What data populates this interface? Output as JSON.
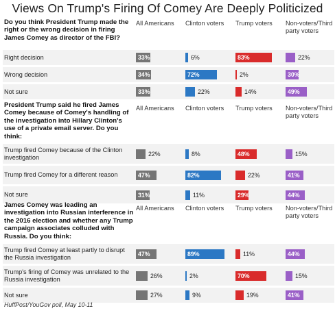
{
  "title": "Views On Trump's Firing Of Comey Are Deeply Politicized",
  "footer": "HuffPost/YouGov poll, May 10-11",
  "colors": {
    "All Americans": "#757575",
    "Clinton voters": "#2c78c4",
    "Trump voters": "#d92b2b",
    "Non-voters/Third party voters": "#9a5fc7",
    "row_background": "#f2f2f2"
  },
  "chart_data": {
    "type": "bar",
    "columns": [
      "All Americans",
      "Clinton voters",
      "Trump voters",
      "Non-voters/Third party voters"
    ],
    "column_labels": [
      "All Americans",
      "Clinton voters",
      "Trump voters",
      "Non-voters/Third\nparty voters"
    ],
    "value_suffix": "%",
    "xlim": [
      0,
      100
    ],
    "questions": [
      {
        "text": "Do you think President Trump made the right or the wrong decision in firing James Comey as director of the FBI?",
        "rows": [
          {
            "label": "Right decision",
            "values": [
              33,
              6,
              83,
              22
            ]
          },
          {
            "label": "Wrong decision",
            "values": [
              34,
              72,
              2,
              30
            ]
          },
          {
            "label": "Not sure",
            "values": [
              33,
              22,
              14,
              49
            ]
          }
        ]
      },
      {
        "text": "President Trump said he fired James Comey because of Comey's handling of the investigation into Hillary Clinton's use of a private email server. Do you think:",
        "rows": [
          {
            "label": "Trump fired Comey because of the Clinton investigation",
            "values": [
              22,
              8,
              48,
              15
            ]
          },
          {
            "label": "Trump fired Comey for a different reason",
            "values": [
              47,
              82,
              22,
              41
            ]
          },
          {
            "label": "Not sure",
            "values": [
              31,
              11,
              29,
              44
            ]
          }
        ]
      },
      {
        "text": "James Comey was leading an investigation into Russian interference in the 2016 election and whether any Trump campaign associates colluded with Russia. Do you think:",
        "rows": [
          {
            "label": "Trump fired Comey at least partly to disrupt the Russia investigation",
            "values": [
              47,
              89,
              11,
              44
            ]
          },
          {
            "label": "Trump's firing of Comey was unrelated to the Russia investigation",
            "values": [
              26,
              2,
              70,
              15
            ]
          },
          {
            "label": "Not sure",
            "values": [
              27,
              9,
              19,
              41
            ]
          }
        ]
      }
    ]
  }
}
